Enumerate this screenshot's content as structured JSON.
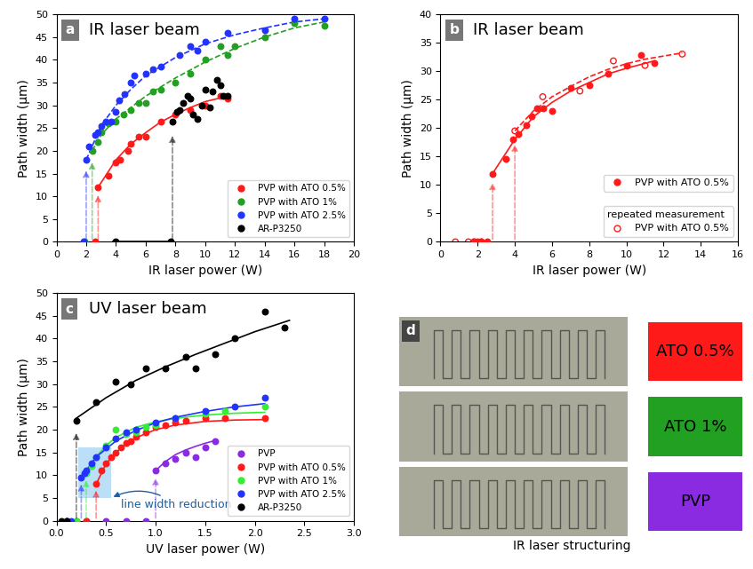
{
  "chart_data": [
    {
      "type": "scatter",
      "panel": "a",
      "title": "IR laser beam",
      "x_label": "IR laser power (W)",
      "y_label": "Path width (µm)",
      "xlim": [
        0,
        20
      ],
      "xticks": [
        0,
        2,
        4,
        6,
        8,
        10,
        12,
        14,
        16,
        18,
        20
      ],
      "ylim": [
        0,
        50
      ],
      "yticks": [
        0,
        5,
        10,
        15,
        20,
        25,
        30,
        35,
        40,
        45,
        50
      ],
      "legend": "lower right",
      "series": [
        {
          "name": "PVP with ATO 0.5%",
          "color": "#ff1a1a",
          "marker": "circle",
          "line_style": "solid",
          "x": [
            2.6,
            2.8,
            3.5,
            4.0,
            4.3,
            4.8,
            5.0,
            5.5,
            6.0,
            7.0,
            8.0,
            9.0,
            10.0,
            11.0,
            11.5
          ],
          "values": [
            0,
            12,
            14.5,
            17.5,
            18,
            20,
            21.5,
            23,
            23,
            26.5,
            28,
            29,
            30,
            32,
            31.5
          ],
          "fit": {
            "x": [
              2.8,
              4,
              5,
              6,
              7,
              8,
              9,
              10,
              11.5
            ],
            "y": [
              12,
              18,
              21.5,
              24,
              26.3,
              28,
              29.5,
              30.8,
              32
            ]
          }
        },
        {
          "name": "PVP with ATO 1%",
          "color": "#22a022",
          "marker": "circle",
          "line_style": "dashed",
          "x": [
            1.9,
            2.4,
            2.8,
            3.0,
            3.5,
            4.0,
            4.5,
            5.0,
            5.5,
            6.0,
            6.5,
            7.0,
            8.0,
            9.0,
            10.0,
            11.0,
            11.5,
            12.0,
            14.0,
            16.0,
            18.0
          ],
          "values": [
            0,
            20,
            22,
            24,
            26,
            26.5,
            28,
            29,
            30.5,
            30.5,
            33,
            33.5,
            35,
            37,
            40,
            43,
            41,
            43,
            45,
            48,
            47.5
          ],
          "fit": {
            "x": [
              2.4,
              3,
              4,
              5,
              6,
              8,
              10,
              12,
              14,
              16,
              18
            ],
            "y": [
              20,
              23.5,
              27,
              29.5,
              32,
              36,
              39.5,
              42.5,
              45,
              47,
              48.3
            ]
          }
        },
        {
          "name": "PVP with ATO 2.5%",
          "color": "#2233ff",
          "marker": "circle",
          "line_style": "dashed",
          "x": [
            1.8,
            2.0,
            2.2,
            2.6,
            2.8,
            3.0,
            3.3,
            3.7,
            4.0,
            4.2,
            4.6,
            5.0,
            5.2,
            6.0,
            6.5,
            7.0,
            8.3,
            9.0,
            9.5,
            10.0,
            11.5,
            14.0,
            16.0,
            18.0
          ],
          "values": [
            0,
            18,
            21,
            23.5,
            24,
            25.5,
            26.5,
            26.5,
            28.5,
            31,
            32.5,
            35,
            36.5,
            37,
            38,
            38.5,
            41,
            43,
            42,
            44,
            46,
            46.5,
            49,
            49
          ],
          "fit": {
            "x": [
              2,
              3,
              4,
              5,
              6,
              8,
              10,
              12,
              14,
              16,
              18
            ],
            "y": [
              18,
              25.5,
              30,
              33.5,
              36.5,
              40.5,
              43.5,
              45.5,
              47,
              48.3,
              49
            ]
          }
        },
        {
          "name": "AR-P3250",
          "color": "#000000",
          "marker": "circle",
          "line_style": "solid",
          "x": [
            4.0,
            7.7,
            7.8,
            8.1,
            8.3,
            8.5,
            8.8,
            9.0,
            9.2,
            9.5,
            9.8,
            10.0,
            10.3,
            10.5,
            10.8,
            11.0,
            11.2,
            11.5
          ],
          "values": [
            0,
            0,
            26.5,
            28.5,
            29,
            30.5,
            32,
            31.5,
            28,
            27,
            30,
            33.5,
            29.5,
            33,
            35.5,
            34.5,
            32,
            32
          ],
          "fit": {
            "x": [
              3.8,
              7.6
            ],
            "y": [
              0,
              0
            ]
          }
        }
      ]
    },
    {
      "type": "scatter",
      "panel": "b",
      "title": "IR laser beam",
      "x_label": "IR laser power (W)",
      "y_label": "Path width (µm)",
      "xlim": [
        0,
        16
      ],
      "xticks": [
        0,
        2,
        4,
        6,
        8,
        10,
        12,
        14,
        16
      ],
      "ylim": [
        0,
        40
      ],
      "yticks": [
        0,
        5,
        10,
        15,
        20,
        25,
        30,
        35,
        40
      ],
      "legend": "lower right",
      "legend_note": "repeated measurement",
      "series": [
        {
          "name": "PVP with ATO 0.5%",
          "color": "#ff1a1a",
          "marker": "circle",
          "line_style": "solid",
          "x": [
            1.8,
            2.0,
            2.2,
            2.5,
            2.8,
            3.5,
            3.9,
            4.2,
            4.6,
            4.9,
            5.2,
            5.5,
            6.0,
            7.0,
            8.0,
            9.0,
            10.0,
            10.8,
            11.5
          ],
          "values": [
            0,
            0,
            0,
            0,
            12,
            14.5,
            18,
            19,
            20.5,
            22,
            23.5,
            23.5,
            23,
            27,
            27.5,
            29.5,
            31,
            32.8,
            31.5
          ],
          "fit": {
            "x": [
              2.8,
              4,
              5,
              6,
              7,
              8,
              9,
              10,
              11.5
            ],
            "y": [
              12,
              18,
              22,
              24.5,
              26.5,
              28,
              29.5,
              30.5,
              31.8
            ]
          }
        },
        {
          "name": "PVP with ATO 0.5%",
          "color": "#ff1a1a",
          "marker": "open circle",
          "line_style": "dashed",
          "x": [
            0.8,
            1.5,
            1.8,
            2.2,
            4.0,
            5.5,
            7.5,
            9.3,
            11.0,
            13.0
          ],
          "values": [
            0,
            0,
            0,
            0,
            19.5,
            25.5,
            26.5,
            31.8,
            31,
            33
          ],
          "fit": {
            "x": [
              4,
              5,
              6,
              7,
              8,
              9,
              10,
              11,
              13
            ],
            "y": [
              19.5,
              23,
              25.5,
              27.3,
              29,
              30.3,
              31.3,
              32.1,
              33.2
            ]
          }
        }
      ]
    },
    {
      "type": "scatter",
      "panel": "c",
      "title": "UV laser beam",
      "x_label": "UV laser power (W)",
      "y_label": "Path width (µm)",
      "xlim": [
        0.0,
        3.0
      ],
      "xticks": [
        0.0,
        0.5,
        1.0,
        1.5,
        2.0,
        2.5,
        3.0
      ],
      "ylim": [
        0,
        50
      ],
      "yticks": [
        0,
        5,
        10,
        15,
        20,
        25,
        30,
        35,
        40,
        45,
        50
      ],
      "legend": "lower right",
      "annotation": {
        "text": "line width reduction",
        "box_x": [
          0.22,
          0.55
        ],
        "box_y": [
          5,
          16
        ]
      },
      "series": [
        {
          "name": "PVP",
          "color": "#8a2be2",
          "marker": "circle",
          "line_style": "solid",
          "x": [
            0.1,
            0.3,
            0.5,
            0.7,
            0.9,
            1.0,
            1.1,
            1.2,
            1.3,
            1.4,
            1.5,
            1.6
          ],
          "values": [
            0,
            0,
            0,
            0,
            0,
            11,
            12.5,
            13.5,
            15,
            14,
            16,
            17.5
          ],
          "fit": {
            "x": [
              1.0,
              1.1,
              1.2,
              1.3,
              1.4,
              1.5,
              1.6
            ],
            "y": [
              11,
              13,
              14.5,
              15.5,
              16.3,
              17,
              17.6
            ]
          }
        },
        {
          "name": "PVP with ATO 0.5%",
          "color": "#ff1a1a",
          "marker": "circle",
          "line_style": "solid",
          "x": [
            0.1,
            0.2,
            0.3,
            0.4,
            0.45,
            0.5,
            0.55,
            0.6,
            0.65,
            0.7,
            0.75,
            0.8,
            0.9,
            1.0,
            1.1,
            1.2,
            1.3,
            1.5,
            1.7,
            2.1
          ],
          "values": [
            0,
            0,
            0,
            8,
            11,
            12.5,
            14,
            15,
            16,
            17,
            17.5,
            18.5,
            19.5,
            20.5,
            21,
            21.5,
            22,
            22.5,
            22.5,
            22.5
          ],
          "fit": {
            "x": [
              0.4,
              0.5,
              0.6,
              0.7,
              0.8,
              1.0,
              1.2,
              1.5,
              1.8,
              2.1
            ],
            "y": [
              8,
              12.5,
              15,
              16.8,
              18.2,
              20,
              21,
              21.8,
              22.1,
              22.2
            ]
          }
        },
        {
          "name": "PVP with ATO 1%",
          "color": "#33ee33",
          "marker": "circle",
          "line_style": "solid",
          "x": [
            0.1,
            0.2,
            0.3,
            0.35,
            0.4,
            0.5,
            0.6,
            0.7,
            0.8,
            0.9,
            1.0,
            1.2,
            1.5,
            1.7,
            2.1
          ],
          "values": [
            0,
            0,
            10.5,
            12,
            14,
            16.5,
            20,
            19,
            19.5,
            20.5,
            21,
            22.5,
            23.5,
            24,
            25
          ],
          "fit": {
            "x": [
              0.3,
              0.4,
              0.5,
              0.6,
              0.8,
              1.0,
              1.2,
              1.5,
              1.8,
              2.1
            ],
            "y": [
              10.5,
              14,
              16.5,
              18.3,
              20.5,
              21.7,
              22.5,
              23.2,
              23.6,
              23.8
            ]
          }
        },
        {
          "name": "PVP with ATO 2.5%",
          "color": "#2233ff",
          "marker": "circle",
          "line_style": "solid",
          "x": [
            0.1,
            0.15,
            0.25,
            0.28,
            0.3,
            0.35,
            0.4,
            0.5,
            0.6,
            0.7,
            0.8,
            1.0,
            1.2,
            1.5,
            1.8,
            2.1
          ],
          "values": [
            0,
            0,
            9.5,
            10.5,
            11,
            12.5,
            14,
            16,
            18,
            19.5,
            20,
            21.5,
            22.5,
            24,
            25,
            27
          ],
          "fit": {
            "x": [
              0.25,
              0.4,
              0.6,
              0.8,
              1.0,
              1.2,
              1.5,
              1.8,
              2.1
            ],
            "y": [
              9.5,
              14,
              17.5,
              19.8,
              21.5,
              22.7,
              24,
              25,
              25.7
            ]
          }
        },
        {
          "name": "AR-P3250",
          "color": "#000000",
          "marker": "circle",
          "line_style": "solid",
          "x": [
            0.05,
            0.1,
            0.2,
            0.4,
            0.6,
            0.75,
            0.9,
            1.1,
            1.3,
            1.4,
            1.6,
            1.8,
            2.1,
            2.3
          ],
          "values": [
            0,
            0,
            22,
            26,
            30.5,
            30,
            33.5,
            33.5,
            36,
            33.5,
            36.5,
            40,
            46,
            42.5
          ],
          "fit": {
            "x": [
              0.2,
              0.5,
              0.8,
              1.1,
              1.4,
              1.7,
              2.0,
              2.35
            ],
            "y": [
              22.5,
              27,
              30.8,
              33.8,
              36.5,
              39,
              41.5,
              44
            ]
          }
        }
      ]
    }
  ],
  "panel_d": {
    "panel": "d",
    "caption": "IR laser structuring",
    "rows": [
      {
        "label": "ATO 0.5%",
        "color": "#ff1a1a"
      },
      {
        "label": "ATO 1%",
        "color": "#22a022"
      },
      {
        "label": "PVP",
        "color": "#8a2be2"
      }
    ]
  }
}
